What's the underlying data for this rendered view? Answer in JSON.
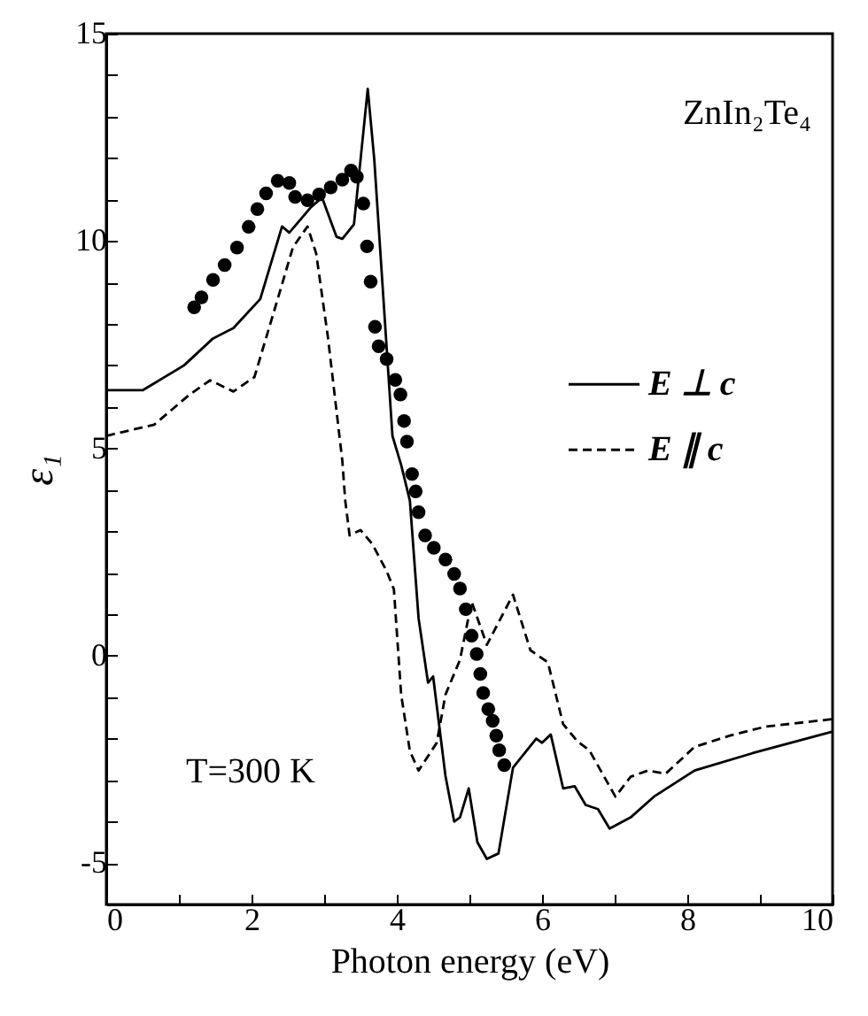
{
  "chart_data": {
    "type": "line",
    "xlabel": "Photon energy (eV)",
    "ylabel": "ε₁",
    "annotations": [
      "ZnIn₂Te₄",
      "T=300 K"
    ],
    "xlim": [
      0,
      10
    ],
    "ylim": [
      -6,
      15
    ],
    "xticks": [
      0,
      {
        "value": 1,
        "label": null
      },
      2,
      {
        "value": 3,
        "label": null
      },
      4,
      {
        "value": 5,
        "label": null
      },
      6,
      {
        "value": 7,
        "label": null
      },
      8,
      {
        "value": 9,
        "label": null
      },
      10
    ],
    "yticks": [
      {
        "value": -6,
        "label": null
      },
      -5,
      {
        "value": -4,
        "label": null
      },
      {
        "value": -3,
        "label": null
      },
      {
        "value": -2,
        "label": null
      },
      {
        "value": -1,
        "label": null
      },
      0,
      {
        "value": 1,
        "label": null
      },
      {
        "value": 2,
        "label": null
      },
      {
        "value": 3,
        "label": null
      },
      {
        "value": 4,
        "label": null
      },
      5,
      {
        "value": 6,
        "label": null
      },
      {
        "value": 7,
        "label": null
      },
      {
        "value": 8,
        "label": null
      },
      {
        "value": 9,
        "label": null
      },
      10,
      {
        "value": 11,
        "label": null
      },
      {
        "value": 12,
        "label": null
      },
      {
        "value": 13,
        "label": null
      },
      {
        "value": 14,
        "label": null
      },
      15
    ],
    "legend": "right",
    "series": [
      {
        "name": "E ⊥ c",
        "line_style": "solid",
        "color": "#000000",
        "x": [
          0,
          0.5,
          1.07,
          1.47,
          1.75,
          2.12,
          2.42,
          2.52,
          2.81,
          2.97,
          3.17,
          3.25,
          3.41,
          3.6,
          3.69,
          3.94,
          4.06,
          4.18,
          4.3,
          4.43,
          4.5,
          4.67,
          4.79,
          4.87,
          4.99,
          5.11,
          5.24,
          5.4,
          5.6,
          5.92,
          6.0,
          6.12,
          6.29,
          6.45,
          6.6,
          6.77,
          6.93,
          7.22,
          7.54,
          8.1,
          8.9,
          10
        ],
        "values": [
          6.4,
          6.4,
          7.0,
          7.65,
          7.9,
          8.6,
          10.35,
          10.2,
          10.8,
          11.05,
          10.1,
          10.05,
          10.4,
          13.67,
          11.96,
          5.3,
          4.6,
          3.74,
          0.9,
          -0.65,
          -0.5,
          -2.9,
          -4.0,
          -3.9,
          -3.2,
          -4.5,
          -4.9,
          -4.77,
          -2.7,
          -2.0,
          -2.1,
          -1.9,
          -3.2,
          -3.15,
          -3.6,
          -3.7,
          -4.17,
          -3.9,
          -3.4,
          -2.77,
          -2.35,
          -1.83
        ]
      },
      {
        "name": "E ∥ c",
        "line_style": "dashed",
        "color": "#000000",
        "x": [
          0,
          0.66,
          1.15,
          1.43,
          1.75,
          2.04,
          2.36,
          2.57,
          2.77,
          2.89,
          3.05,
          3.25,
          3.29,
          3.35,
          3.5,
          3.66,
          3.86,
          3.96,
          4.06,
          4.18,
          4.3,
          4.55,
          4.67,
          4.87,
          5.03,
          5.24,
          5.6,
          5.84,
          6.08,
          6.29,
          6.49,
          6.65,
          7.01,
          7.22,
          7.46,
          7.7,
          8.1,
          8.6,
          9.08,
          10
        ],
        "values": [
          5.3,
          5.57,
          6.3,
          6.64,
          6.37,
          6.72,
          8.6,
          9.85,
          10.35,
          9.7,
          7.7,
          4.7,
          3.74,
          2.9,
          3.03,
          2.7,
          2.04,
          1.6,
          -0.94,
          -2.3,
          -2.77,
          -2.1,
          -0.94,
          -0.1,
          1.3,
          0.26,
          1.47,
          0.13,
          -0.16,
          -1.65,
          -2.07,
          -2.28,
          -3.4,
          -2.92,
          -2.77,
          -2.85,
          -2.2,
          -1.92,
          -1.71,
          -1.53
        ]
      },
      {
        "type": "scatter",
        "marker": "circle",
        "color": "#000000",
        "x": [
          1.21,
          1.31,
          1.47,
          1.63,
          1.8,
          1.96,
          2.08,
          2.2,
          2.36,
          2.52,
          2.6,
          2.77,
          2.93,
          3.09,
          3.25,
          3.37,
          3.45,
          3.54,
          3.59,
          3.64,
          3.7,
          3.75,
          3.86,
          3.98,
          4.05,
          4.1,
          4.14,
          4.21,
          4.26,
          4.3,
          4.39,
          4.51,
          4.67,
          4.79,
          4.87,
          4.95,
          5.03,
          5.1,
          5.15,
          5.19,
          5.26,
          5.32,
          5.37,
          5.41,
          5.48
        ],
        "values": [
          8.4,
          8.64,
          9.06,
          9.42,
          9.84,
          10.34,
          10.77,
          11.15,
          11.45,
          11.4,
          11.06,
          10.98,
          11.12,
          11.29,
          11.48,
          11.7,
          11.55,
          10.9,
          9.87,
          9.02,
          7.93,
          7.46,
          7.15,
          6.65,
          6.3,
          5.66,
          5.16,
          4.38,
          3.96,
          3.46,
          2.9,
          2.6,
          2.32,
          1.97,
          1.62,
          1.12,
          0.48,
          0.04,
          -0.44,
          -0.9,
          -1.29,
          -1.57,
          -1.93,
          -2.28,
          -2.64
        ]
      }
    ]
  }
}
